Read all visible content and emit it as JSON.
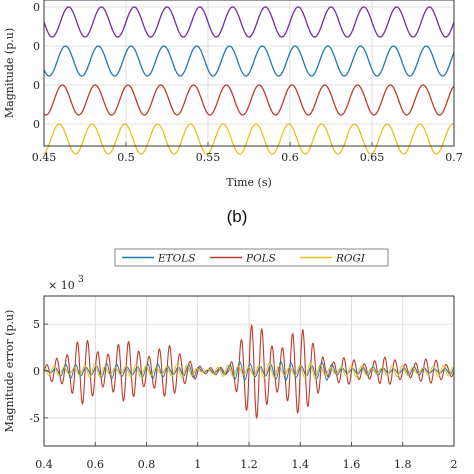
{
  "chart_data": [
    {
      "type": "line",
      "ylabel": "Magnitude (p.u)",
      "xlabel": "Time (s)",
      "xlim": [
        0.45,
        0.7
      ],
      "xticks": [
        "0.45",
        "0.5",
        "0.55",
        "0.6",
        "0.65",
        "0.7"
      ],
      "xtick_values": [
        0.45,
        0.5,
        0.55,
        0.6,
        0.65,
        0.7
      ],
      "yticks": [
        "0",
        "0",
        "0",
        "0"
      ],
      "grid": true,
      "series": [
        {
          "color": "#7030a0",
          "offset_level": 0,
          "amplitude": 0.9,
          "frequency_hz": 50,
          "phase": 0.0
        },
        {
          "color": "#1f78b4",
          "offset_level": 1,
          "amplitude": 0.9,
          "frequency_hz": 50,
          "phase": 0.6
        },
        {
          "color": "#c0392b",
          "offset_level": 2,
          "amplitude": 0.9,
          "frequency_hz": 50,
          "phase": 1.2
        },
        {
          "color": "#e6c11a",
          "offset_level": 3,
          "amplitude": 0.9,
          "frequency_hz": 50,
          "phase": 1.8
        }
      ],
      "caption": "(b)"
    },
    {
      "type": "line",
      "ylabel": "Magnitude error (p.u)",
      "y_exponent": "× 10^-3",
      "y_exponent_base": "× 10",
      "y_exponent_power": "3",
      "xlim": [
        0.4,
        2.0
      ],
      "ylim": [
        -8,
        8
      ],
      "xticks": [
        "0.4",
        "0.6",
        "0.8",
        "1",
        "1.2",
        "1.4",
        "1.6",
        "1.8",
        "2"
      ],
      "xtick_values": [
        0.4,
        0.6,
        0.8,
        1.0,
        1.2,
        1.4,
        1.6,
        1.8,
        2.0
      ],
      "yticks": [
        "5",
        "0",
        "-5"
      ],
      "ytick_values": [
        5,
        0,
        -5
      ],
      "grid": true,
      "legend": {
        "placement": "top-center",
        "entries": [
          {
            "name": "ETOLS",
            "color": "#1f78b4"
          },
          {
            "name": "POLS",
            "color": "#c0392b"
          },
          {
            "name": "ROGI",
            "color": "#e6c11a"
          }
        ]
      },
      "series": [
        {
          "name": "POLS",
          "color": "#c0392b",
          "oscillation_hz": 25,
          "envelope": [
            [
              0.4,
              0.3
            ],
            [
              0.45,
              2.5
            ],
            [
              0.55,
              3.5
            ],
            [
              0.85,
              3.0
            ],
            [
              0.98,
              2.0
            ],
            [
              1.02,
              0.3
            ],
            [
              1.12,
              0.5
            ],
            [
              1.16,
              5.5
            ],
            [
              1.3,
              4.5
            ],
            [
              1.48,
              4.5
            ],
            [
              1.5,
              1.0
            ],
            [
              1.6,
              1.6
            ],
            [
              2.0,
              1.2
            ]
          ]
        },
        {
          "name": "ETOLS",
          "color": "#1f78b4",
          "oscillation_hz": 25,
          "envelope": [
            [
              0.4,
              0.2
            ],
            [
              0.5,
              0.8
            ],
            [
              0.98,
              0.8
            ],
            [
              1.02,
              0.1
            ],
            [
              1.15,
              1.0
            ],
            [
              1.5,
              1.0
            ],
            [
              1.55,
              0.5
            ],
            [
              2.0,
              0.4
            ]
          ]
        },
        {
          "name": "ROGI",
          "color": "#e6c11a",
          "oscillation_hz": 25,
          "envelope": [
            [
              0.4,
              0.4
            ],
            [
              0.5,
              0.7
            ],
            [
              0.98,
              0.7
            ],
            [
              1.02,
              0.2
            ],
            [
              1.15,
              0.8
            ],
            [
              1.5,
              0.8
            ],
            [
              1.55,
              0.6
            ],
            [
              2.0,
              0.6
            ]
          ]
        }
      ]
    }
  ]
}
